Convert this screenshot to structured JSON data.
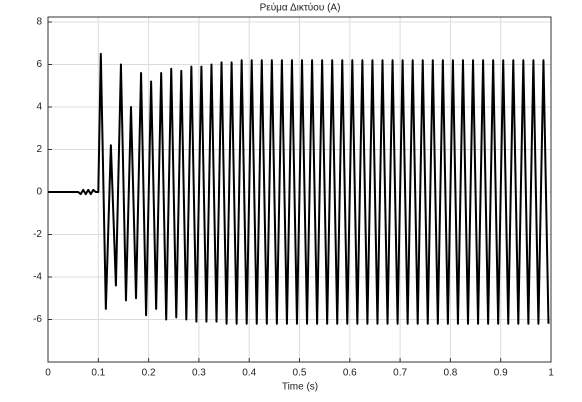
{
  "chart_data": {
    "type": "line",
    "title": "Ρεύμα Δικτύου (A)",
    "x_label": "Time (s)",
    "x": [
      0,
      0.06,
      0.065,
      0.07,
      0.075,
      0.08,
      0.085,
      0.09,
      0.095,
      0.1,
      0.105,
      0.115,
      0.125,
      0.135,
      0.145,
      0.155,
      0.165,
      0.175,
      0.185,
      0.195,
      0.205,
      0.215,
      0.225,
      0.235,
      0.245,
      0.255,
      0.265,
      0.275,
      0.285,
      0.295,
      0.305,
      0.315,
      0.325,
      0.335,
      0.345,
      0.355,
      0.365,
      0.375,
      0.385,
      0.395,
      0.405,
      0.415,
      0.425,
      0.435,
      0.445,
      0.455,
      0.465,
      0.475,
      0.485,
      0.495,
      0.505,
      0.515,
      0.525,
      0.535,
      0.545,
      0.555,
      0.565,
      0.575,
      0.585,
      0.595,
      0.605,
      0.615,
      0.625,
      0.635,
      0.645,
      0.655,
      0.665,
      0.675,
      0.685,
      0.695,
      0.705,
      0.715,
      0.725,
      0.735,
      0.745,
      0.755,
      0.765,
      0.775,
      0.785,
      0.795,
      0.805,
      0.815,
      0.825,
      0.835,
      0.845,
      0.855,
      0.865,
      0.875,
      0.885,
      0.895,
      0.905,
      0.915,
      0.925,
      0.935,
      0.945,
      0.955,
      0.965,
      0.975,
      0.985,
      0.995
    ],
    "series": [
      {
        "color": "#000000",
        "values": [
          0,
          0,
          -0.1,
          0.1,
          -0.1,
          0.1,
          -0.1,
          0.1,
          0,
          0,
          6.5,
          -5.5,
          2.2,
          -4.4,
          6.0,
          -5.1,
          4.0,
          -5.0,
          5.6,
          -5.8,
          5.2,
          -5.5,
          5.6,
          -6.0,
          5.8,
          -5.9,
          5.7,
          -6.0,
          5.9,
          -6.1,
          5.9,
          -6.1,
          6.0,
          -6.1,
          6.1,
          -6.2,
          6.1,
          -6.2,
          6.2,
          -6.2,
          6.2,
          -6.2,
          6.2,
          -6.2,
          6.2,
          -6.2,
          6.2,
          -6.2,
          6.2,
          -6.2,
          6.2,
          -6.2,
          6.2,
          -6.2,
          6.2,
          -6.2,
          6.2,
          -6.2,
          6.2,
          -6.2,
          6.2,
          -6.2,
          6.2,
          -6.2,
          6.2,
          -6.2,
          6.2,
          -6.2,
          6.2,
          -6.2,
          6.2,
          -6.2,
          6.2,
          -6.2,
          6.2,
          -6.2,
          6.2,
          -6.2,
          6.2,
          -6.2,
          6.2,
          -6.2,
          6.2,
          -6.2,
          6.2,
          -6.2,
          6.2,
          -6.2,
          6.2,
          -6.2,
          6.2,
          -6.2,
          6.2,
          -6.2,
          6.2,
          -6.2,
          6.2,
          -6.2,
          6.2,
          -6.2
        ]
      }
    ],
    "xlim": [
      0,
      1
    ],
    "xticks": [
      0,
      0.1,
      0.2,
      0.3,
      0.4,
      0.5,
      0.6,
      0.7,
      0.8,
      0.9,
      1
    ],
    "ylim": [
      -8,
      8
    ],
    "yticks": [
      -6,
      -4,
      -2,
      0,
      2,
      4,
      6,
      8
    ],
    "grid": true
  }
}
